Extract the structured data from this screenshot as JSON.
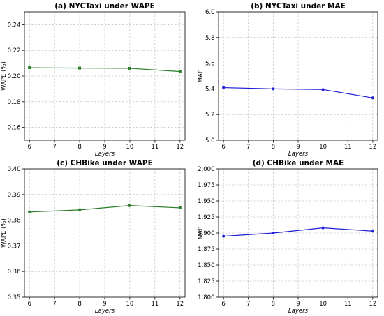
{
  "chart_data": [
    {
      "type": "line",
      "title": "(a) NYCTaxi under WAPE",
      "xlabel": "Layers",
      "ylabel": "WAPE (%)",
      "xlim": [
        5.8,
        12.2
      ],
      "ylim": [
        0.15,
        0.25
      ],
      "xticks": [
        6,
        7,
        8,
        9,
        10,
        11,
        12
      ],
      "xtick_labels": [
        "6",
        "7",
        "8",
        "9",
        "10",
        "11",
        "12"
      ],
      "yticks": [
        0.16,
        0.18,
        0.2,
        0.22,
        0.24
      ],
      "ytick_labels": [
        "0.16",
        "0.18",
        "0.20",
        "0.22",
        "0.24"
      ],
      "grid": true,
      "color": "#2a7d2a",
      "marker": "square",
      "x": [
        6,
        8,
        10,
        12
      ],
      "y": [
        0.2065,
        0.2062,
        0.206,
        0.2035
      ]
    },
    {
      "type": "line",
      "title": "(b) NYCTaxi under MAE",
      "xlabel": "Layers",
      "ylabel": "MAE",
      "xlim": [
        5.8,
        12.2
      ],
      "ylim": [
        5.0,
        6.0
      ],
      "xticks": [
        6,
        7,
        8,
        9,
        10,
        11,
        12
      ],
      "xtick_labels": [
        "6",
        "7",
        "8",
        "9",
        "10",
        "11",
        "12"
      ],
      "yticks": [
        5.0,
        5.2,
        5.4,
        5.6,
        5.8,
        6.0
      ],
      "ytick_labels": [
        "5.0",
        "5.2",
        "5.4",
        "5.6",
        "5.8",
        "6.0"
      ],
      "grid": true,
      "color": "#1f1fd6",
      "marker": "dot",
      "x": [
        6,
        8,
        10,
        12
      ],
      "y": [
        5.41,
        5.4,
        5.395,
        5.33
      ]
    },
    {
      "type": "line",
      "title": "(c) CHBike under WAPE",
      "xlabel": "Layers",
      "ylabel": "WAPE (%)",
      "xlim": [
        5.8,
        12.2
      ],
      "ylim": [
        0.35,
        0.4
      ],
      "xticks": [
        6,
        7,
        8,
        9,
        10,
        11,
        12
      ],
      "xtick_labels": [
        "6",
        "7",
        "8",
        "9",
        "10",
        "11",
        "12"
      ],
      "yticks": [
        0.35,
        0.36,
        0.37,
        0.38,
        0.39,
        0.4
      ],
      "ytick_labels": [
        "0.35",
        "0.36",
        "0.37",
        "0.38",
        "0.39",
        "0.40"
      ],
      "grid": true,
      "color": "#2a7d2a",
      "marker": "square",
      "x": [
        6,
        8,
        10,
        12
      ],
      "y": [
        0.3832,
        0.384,
        0.3857,
        0.3848
      ]
    },
    {
      "type": "line",
      "title": "(d) CHBike under MAE",
      "xlabel": "Layers",
      "ylabel": "MAE",
      "xlim": [
        5.8,
        12.2
      ],
      "ylim": [
        1.8,
        2.0
      ],
      "xticks": [
        6,
        7,
        8,
        9,
        10,
        11,
        12
      ],
      "xtick_labels": [
        "6",
        "7",
        "8",
        "9",
        "10",
        "11",
        "12"
      ],
      "yticks": [
        1.8,
        1.825,
        1.85,
        1.875,
        1.9,
        1.925,
        1.95,
        1.975,
        2.0
      ],
      "ytick_labels": [
        "1.800",
        "1.825",
        "1.850",
        "1.875",
        "1.900",
        "1.925",
        "1.950",
        "1.975",
        "2.000"
      ],
      "grid": true,
      "color": "#1f1fd6",
      "marker": "dot",
      "x": [
        6,
        8,
        10,
        12
      ],
      "y": [
        1.895,
        1.9,
        1.908,
        1.903
      ]
    }
  ]
}
